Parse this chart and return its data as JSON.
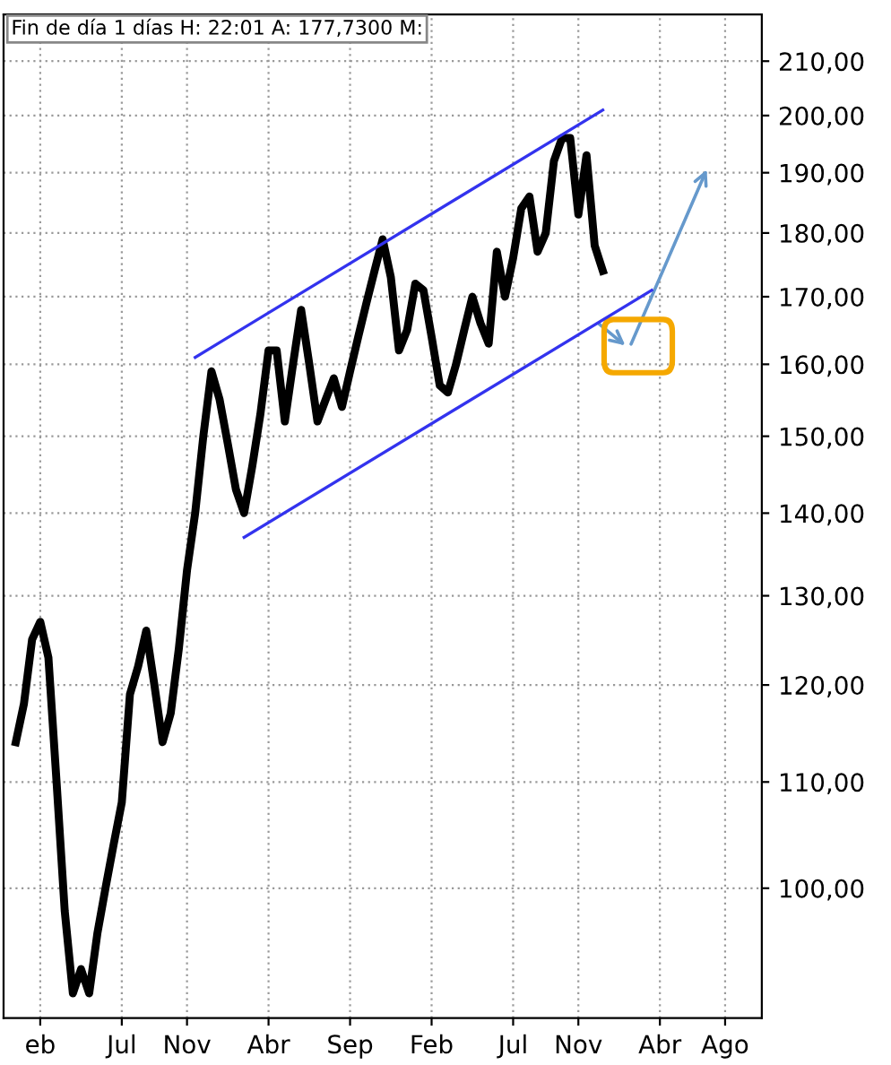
{
  "chart_data": {
    "type": "line",
    "title": "Fin de día 1 días H: 22:01 A: 177,7300 M:",
    "log": "y",
    "grid": true,
    "marker": "none",
    "line_style": "solid",
    "categories": [
      null,
      null,
      null,
      null,
      "eb",
      null,
      null,
      null,
      null,
      null,
      null,
      null,
      null,
      null,
      "Jul",
      null,
      null,
      null,
      null,
      null,
      null,
      null,
      "Nov",
      null,
      null,
      null,
      null,
      null,
      null,
      null,
      null,
      null,
      "Abr",
      null,
      null,
      null,
      null,
      null,
      null,
      null,
      null,
      null,
      "Sep",
      null,
      null,
      null,
      null,
      null,
      null,
      null,
      null,
      null,
      "Feb",
      null,
      null,
      null,
      null,
      null,
      null,
      null,
      null,
      null,
      "Jul",
      null,
      null,
      null,
      null,
      null,
      null,
      null,
      "Nov",
      null,
      null,
      null,
      null,
      null,
      null,
      null,
      null,
      null,
      "Abr",
      null,
      null,
      null,
      null,
      null,
      null,
      null,
      "Ago",
      null,
      null,
      null,
      null
    ],
    "ylim": [
      89,
      219
    ],
    "yticks": [
      {
        "value": 100,
        "label": "100,00"
      },
      {
        "value": 110,
        "label": "110,00"
      },
      {
        "value": 120,
        "label": "120,00"
      },
      {
        "value": 130,
        "label": "130,00"
      },
      {
        "value": 140,
        "label": "140,00"
      },
      {
        "value": 150,
        "label": "150,00"
      },
      {
        "value": 160,
        "label": "160,00"
      },
      {
        "value": 170,
        "label": "170,00"
      },
      {
        "value": 180,
        "label": "180,00"
      },
      {
        "value": 190,
        "label": "190,00"
      },
      {
        "value": 200,
        "label": "200,00"
      },
      {
        "value": 210,
        "label": "210,00"
      }
    ],
    "series": [
      {
        "color": "#000000",
        "values": [
          null,
          114,
          118,
          125,
          127,
          123,
          110,
          98,
          91,
          93,
          91,
          96,
          100,
          104,
          108,
          119,
          122,
          126,
          120,
          114,
          117,
          124,
          133,
          140,
          150,
          159,
          155,
          149,
          143,
          140,
          146,
          153,
          162,
          162,
          152,
          160,
          168,
          160,
          152,
          155,
          158,
          154,
          159,
          164,
          169,
          174,
          179,
          173,
          162,
          165,
          172,
          171,
          164,
          157,
          156,
          160,
          165,
          170,
          166,
          163,
          177,
          170,
          176,
          184,
          186,
          177,
          180,
          192,
          196,
          196,
          183,
          193,
          178,
          174,
          null,
          null,
          null,
          null,
          null,
          null,
          null,
          null,
          null,
          null,
          null,
          null,
          null,
          null,
          null,
          null,
          null,
          null,
          null
        ]
      },
      {
        "type": "line",
        "color": "#3333ee",
        "values": [
          null,
          null,
          null,
          null,
          null,
          null,
          null,
          null,
          null,
          null,
          null,
          null,
          null,
          null,
          null,
          null,
          null,
          null,
          null,
          null,
          null,
          null,
          null,
          161,
          null,
          null,
          null,
          null,
          null,
          null,
          null,
          null,
          null,
          null,
          null,
          null,
          null,
          null,
          null,
          null,
          null,
          null,
          null,
          null,
          null,
          null,
          null,
          null,
          null,
          null,
          null,
          null,
          null,
          null,
          null,
          null,
          null,
          null,
          null,
          null,
          null,
          null,
          null,
          null,
          null,
          null,
          null,
          null,
          null,
          null,
          null,
          null,
          null,
          201,
          null,
          null,
          null,
          null,
          null,
          null,
          null,
          null,
          null,
          null,
          null,
          null,
          null,
          null,
          null,
          null,
          null,
          null,
          null
        ]
      },
      {
        "type": "line",
        "color": "#3333ee",
        "values": [
          null,
          null,
          null,
          null,
          null,
          null,
          null,
          null,
          null,
          null,
          null,
          null,
          null,
          null,
          null,
          null,
          null,
          null,
          null,
          null,
          null,
          null,
          null,
          null,
          null,
          null,
          null,
          null,
          null,
          137,
          null,
          null,
          null,
          null,
          null,
          null,
          null,
          null,
          null,
          null,
          null,
          null,
          null,
          null,
          null,
          null,
          null,
          null,
          null,
          null,
          null,
          null,
          null,
          null,
          null,
          null,
          null,
          null,
          null,
          null,
          null,
          null,
          null,
          null,
          null,
          null,
          null,
          null,
          null,
          null,
          null,
          null,
          null,
          null,
          null,
          null,
          null,
          null,
          null,
          171,
          null,
          null,
          null,
          null,
          null,
          null,
          null,
          null,
          null,
          null,
          null,
          null,
          null
        ]
      }
    ]
  }
}
